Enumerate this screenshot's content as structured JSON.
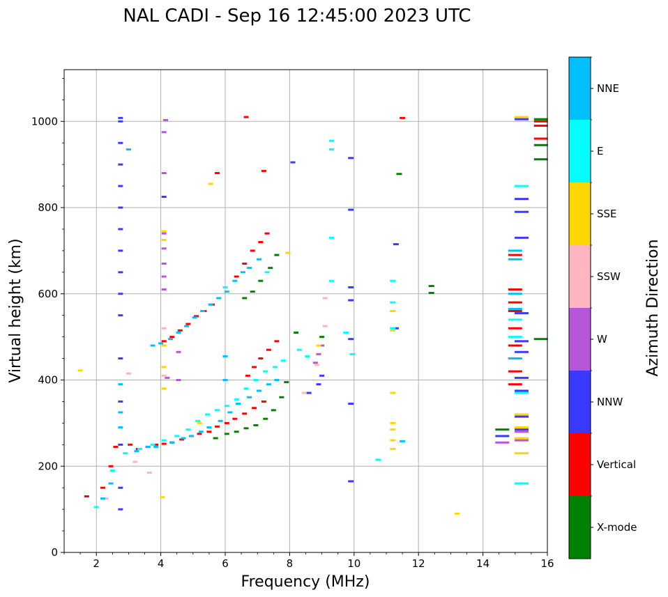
{
  "chart_data": {
    "type": "scatter",
    "title": "NAL CADI - Sep 16 12:45:00 2023 UTC",
    "xlabel": "Frequency (MHz)",
    "ylabel": "Virtual height (km)",
    "xlim": [
      1,
      16
    ],
    "ylim": [
      0,
      1120
    ],
    "xticks": [
      2,
      4,
      6,
      8,
      10,
      12,
      14,
      16
    ],
    "yticks": [
      0,
      200,
      400,
      600,
      800,
      1000
    ],
    "grid": true,
    "colorbar": {
      "title": "Azimuth Direction",
      "position": "right",
      "categories": [
        {
          "label": "X-mode",
          "color": "#008000"
        },
        {
          "label": "Vertical",
          "color": "#ff0000"
        },
        {
          "label": "NNW",
          "color": "#3a3aff"
        },
        {
          "label": "W",
          "color": "#b557d6"
        },
        {
          "label": "SSW",
          "color": "#ffb6c1"
        },
        {
          "label": "SSE",
          "color": "#ffd700"
        },
        {
          "label": "E",
          "color": "#00ffff"
        },
        {
          "label": "NNE",
          "color": "#00bfff"
        }
      ]
    },
    "series": [
      {
        "name": "Vertical",
        "color": "#ff0000",
        "x": [
          1.7,
          2.2,
          2.45,
          2.6,
          3.05,
          3.3,
          3.6,
          3.85,
          4.1,
          4.35,
          4.65,
          4.95,
          5.2,
          5.5,
          5.75,
          6.05,
          6.3,
          6.6,
          6.9,
          7.2,
          4.1,
          4.35,
          4.6,
          4.85,
          5.1,
          5.35,
          5.6,
          6.35,
          6.6,
          6.85,
          7.1,
          7.3,
          6.7,
          6.9,
          7.1,
          7.35,
          7.6,
          15.0,
          15.0,
          15.0,
          15.0,
          15.0,
          15.0,
          15.0,
          15.0,
          15.0,
          15.8,
          15.8,
          15.8,
          6.65,
          7.2,
          11.5,
          5.75
        ],
        "y": [
          130,
          150,
          200,
          245,
          250,
          240,
          245,
          250,
          252,
          255,
          262,
          270,
          275,
          280,
          292,
          300,
          310,
          322,
          335,
          350,
          490,
          500,
          515,
          530,
          548,
          560,
          575,
          640,
          670,
          700,
          720,
          740,
          410,
          430,
          450,
          470,
          490,
          390,
          420,
          450,
          480,
          520,
          560,
          580,
          610,
          690,
          960,
          990,
          1000,
          1010,
          885,
          1008,
          880
        ]
      },
      {
        "name": "X-mode",
        "color": "#008000",
        "x": [
          5.7,
          6.05,
          6.35,
          6.65,
          6.95,
          7.25,
          7.5,
          7.75,
          7.9,
          6.6,
          6.85,
          7.1,
          7.4,
          7.6,
          8.2,
          9.0,
          12.4,
          12.4,
          14.6,
          15.8,
          15.8,
          15.8,
          15.8,
          11.4
        ],
        "y": [
          265,
          275,
          280,
          288,
          295,
          310,
          330,
          360,
          395,
          590,
          605,
          630,
          660,
          690,
          510,
          500,
          618,
          602,
          285,
          1005,
          945,
          912,
          495,
          878
        ]
      },
      {
        "name": "NNW",
        "color": "#3a3aff",
        "x": [
          2.75,
          2.75,
          2.75,
          2.75,
          2.75,
          2.75,
          2.75,
          2.75,
          2.75,
          2.75,
          8.1,
          8.6,
          8.9,
          9.0,
          9.9,
          9.9,
          9.9,
          9.9,
          9.9,
          11.3,
          11.3,
          15.2,
          15.2,
          15.2,
          15.2,
          15.2,
          15.2,
          15.2,
          15.2,
          15.2,
          15.2,
          14.6,
          15.2,
          4.1,
          9.9,
          9.9,
          2.75,
          2.75,
          2.75,
          2.75,
          2.75,
          2.75
        ],
        "y": [
          100,
          150,
          250,
          350,
          450,
          550,
          650,
          750,
          850,
          950,
          905,
          370,
          390,
          410,
          165,
          345,
          495,
          585,
          795,
          520,
          715,
          285,
          315,
          375,
          405,
          465,
          490,
          555,
          730,
          790,
          820,
          270,
          1005,
          825,
          915,
          615,
          1008,
          600,
          700,
          800,
          900,
          1000
        ]
      },
      {
        "name": "W",
        "color": "#b557d6",
        "x": [
          8.8,
          8.9,
          9.0,
          14.6,
          15.2,
          4.1,
          4.1,
          4.1,
          4.1,
          4.1,
          4.1,
          4.1,
          4.15,
          4.2,
          4.55,
          4.55,
          15.2
        ],
        "y": [
          440,
          460,
          480,
          255,
          260,
          610,
          640,
          670,
          705,
          740,
          880,
          975,
          1003,
          405,
          465,
          400,
          280
        ]
      },
      {
        "name": "SSW",
        "color": "#ffb6c1",
        "x": [
          2.3,
          3.2,
          3.65,
          4.1,
          4.1,
          8.45,
          8.85,
          9.1,
          9.1,
          3.0
        ],
        "y": [
          125,
          210,
          185,
          410,
          520,
          370,
          435,
          590,
          525,
          415
        ]
      },
      {
        "name": "SSE",
        "color": "#ffd700",
        "x": [
          1.5,
          4.05,
          4.1,
          4.1,
          4.1,
          5.2,
          5.55,
          7.95,
          8.9,
          11.2,
          11.2,
          11.2,
          11.2,
          11.2,
          11.2,
          11.2,
          13.2,
          15.2,
          15.2,
          15.2,
          15.2,
          15.2,
          4.1,
          4.1
        ],
        "y": [
          422,
          128,
          480,
          725,
          745,
          300,
          855,
          695,
          480,
          240,
          260,
          285,
          300,
          370,
          515,
          560,
          90,
          230,
          265,
          290,
          320,
          1010,
          430,
          380
        ]
      },
      {
        "name": "E",
        "color": "#00ffff",
        "x": [
          2.0,
          2.5,
          2.9,
          3.35,
          3.75,
          4.1,
          4.5,
          4.85,
          5.15,
          5.45,
          5.75,
          6.05,
          6.35,
          6.65,
          6.95,
          7.25,
          7.55,
          7.8,
          8.3,
          8.55,
          9.3,
          9.3,
          9.3,
          9.3,
          11.2,
          11.2,
          11.2,
          15.0,
          15.0,
          15.2,
          15.2,
          15.2,
          10.75,
          6.0,
          7.3,
          9.75,
          9.95
        ],
        "y": [
          105,
          190,
          230,
          240,
          250,
          260,
          270,
          285,
          305,
          320,
          330,
          340,
          355,
          380,
          400,
          420,
          430,
          445,
          470,
          455,
          630,
          730,
          935,
          955,
          520,
          580,
          630,
          500,
          540,
          160,
          370,
          850,
          215,
          615,
          650,
          510,
          460
        ]
      },
      {
        "name": "NNE",
        "color": "#00bfff",
        "x": [
          2.2,
          2.45,
          3.25,
          3.6,
          3.85,
          4.35,
          4.7,
          4.95,
          5.25,
          5.5,
          5.85,
          6.15,
          6.4,
          6.75,
          7.05,
          7.35,
          7.6,
          3.75,
          4.0,
          4.3,
          4.55,
          4.8,
          5.05,
          5.3,
          5.55,
          5.8,
          6.05,
          6.3,
          6.55,
          6.75,
          7.05,
          15.0,
          15.0,
          15.0,
          11.5,
          15.0,
          15.0,
          3.0,
          6.0,
          6.0,
          2.75,
          2.75,
          2.75
        ],
        "y": [
          125,
          160,
          235,
          245,
          245,
          255,
          265,
          270,
          280,
          290,
          305,
          325,
          345,
          360,
          375,
          390,
          400,
          480,
          485,
          495,
          510,
          525,
          545,
          560,
          575,
          590,
          605,
          630,
          650,
          660,
          680,
          700,
          680,
          450,
          258,
          565,
          600,
          935,
          400,
          455,
          290,
          325,
          390
        ]
      }
    ]
  }
}
